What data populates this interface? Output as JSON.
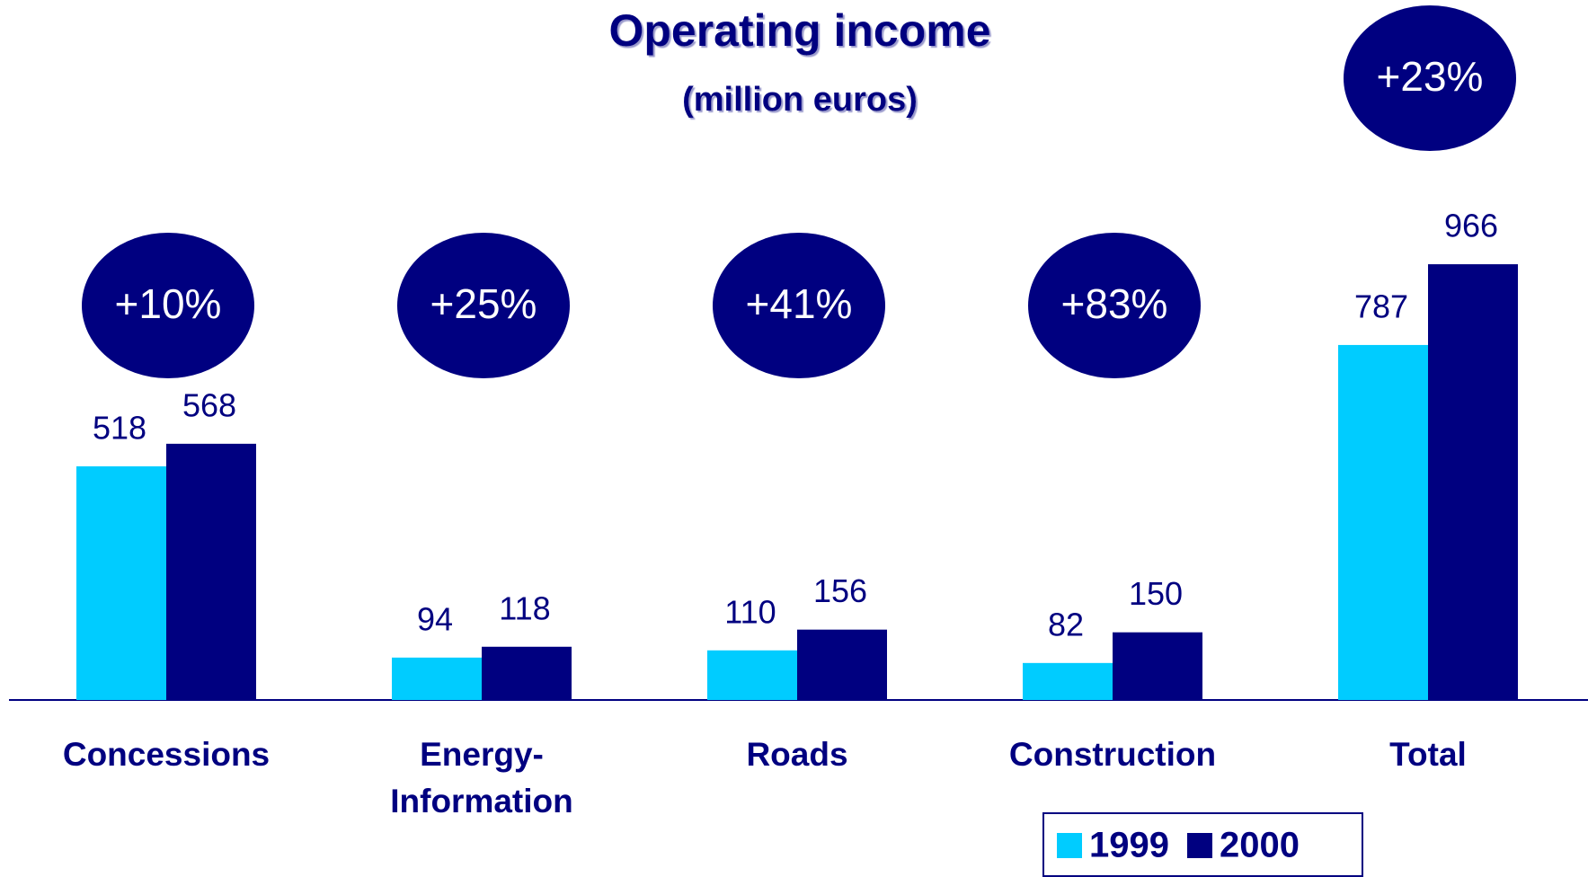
{
  "chart_data": {
    "type": "bar",
    "title": "Operating income",
    "subtitle": "(million euros)",
    "categories": [
      "Concessions",
      "Energy-\nInformation",
      "Roads",
      "Construction",
      "Total"
    ],
    "series": [
      {
        "name": "1999",
        "color": "#00ccff",
        "values": [
          518,
          94,
          110,
          82,
          787
        ]
      },
      {
        "name": "2000",
        "color": "#000080",
        "values": [
          568,
          118,
          156,
          150,
          966
        ]
      }
    ],
    "annotations": [
      "+10%",
      "+25%",
      "+41%",
      "+83%",
      "+23%"
    ],
    "ylim": [
      0,
      1000
    ]
  }
}
